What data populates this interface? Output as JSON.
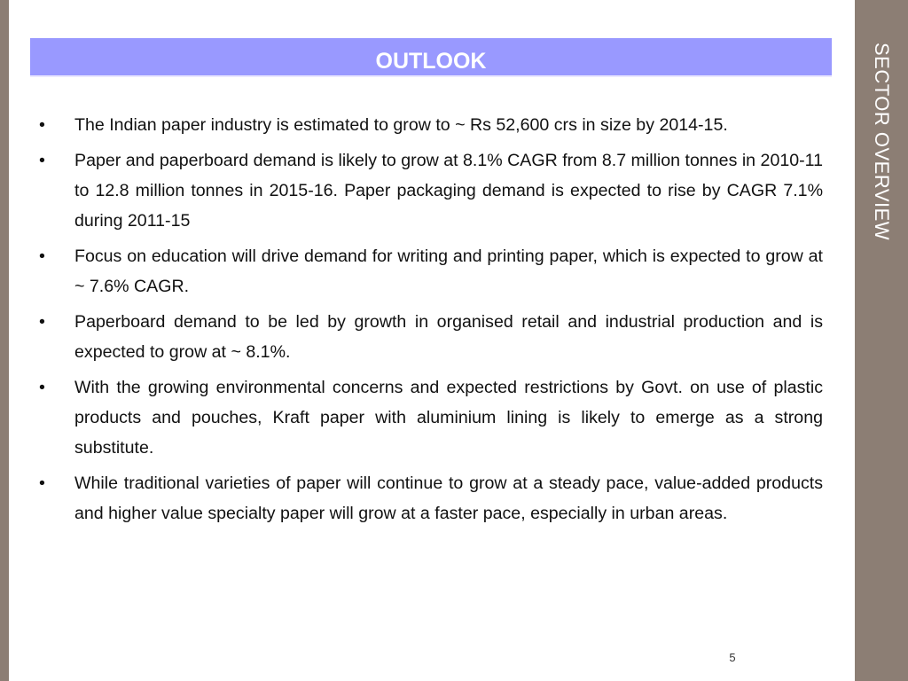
{
  "slide": {
    "title": "OUTLOOK",
    "side_title": "SECTOR OVERVIEW",
    "page_number": "5",
    "bullet_symbol": "•",
    "bullets": [
      "The Indian paper industry is estimated to grow to ~ Rs 52,600 crs in size by 2014-15.",
      "Paper and paperboard demand is likely to grow at 8.1% CAGR from 8.7 million tonnes in 2010-11 to 12.8 million tonnes in 2015-16. Paper packaging demand is expected to rise by CAGR 7.1% during 2011-15",
      "Focus on education will drive demand for writing and printing paper, which is expected to grow at ~ 7.6% CAGR.",
      "Paperboard demand to be led by growth in organised retail and industrial production and is expected to grow at ~ 8.1%.",
      "With the growing environmental concerns and expected restrictions by Govt. on use of plastic products and pouches, Kraft paper with aluminium lining is likely to emerge as a strong substitute.",
      "While traditional varieties of paper will continue to grow at a steady pace, value-added products and higher value specialty paper will grow at a faster pace, especially in urban areas."
    ]
  },
  "colors": {
    "side_bar": "#8c7e74",
    "title_band": "#9999ff",
    "title_text": "#ffffff"
  }
}
